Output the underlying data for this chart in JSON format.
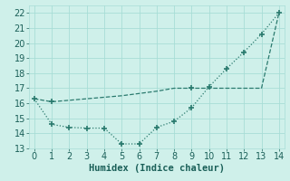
{
  "x": [
    0,
    1,
    2,
    3,
    4,
    5,
    6,
    7,
    8,
    9,
    10,
    11,
    12,
    13,
    14
  ],
  "line1": [
    16.3,
    16.1,
    16.2,
    16.3,
    16.4,
    16.5,
    16.65,
    16.8,
    17.0,
    17.0,
    17.0,
    17.0,
    17.0,
    17.0,
    22.0
  ],
  "line2": [
    16.3,
    14.6,
    14.4,
    14.35,
    14.35,
    13.3,
    13.3,
    14.4,
    14.8,
    15.7,
    17.1,
    18.3,
    19.4,
    20.6,
    22.0
  ],
  "color": "#2a7a6e",
  "marker": "+",
  "markersize": 4,
  "markeredgewidth": 1.2,
  "line1_lw": 0.9,
  "line2_lw": 0.9,
  "xlabel": "Humidex (Indice chaleur)",
  "xlim": [
    -0.3,
    14.3
  ],
  "ylim": [
    13.0,
    22.5
  ],
  "yticks": [
    13,
    14,
    15,
    16,
    17,
    18,
    19,
    20,
    21,
    22
  ],
  "xticks": [
    0,
    1,
    2,
    3,
    4,
    5,
    6,
    7,
    8,
    9,
    10,
    11,
    12,
    13,
    14
  ],
  "background_color": "#cff0ea",
  "grid_color": "#a8ddd6",
  "tick_label_color": "#1a5f58",
  "xlabel_color": "#1a5f58",
  "xlabel_fontsize": 7.5,
  "tick_fontsize": 7
}
